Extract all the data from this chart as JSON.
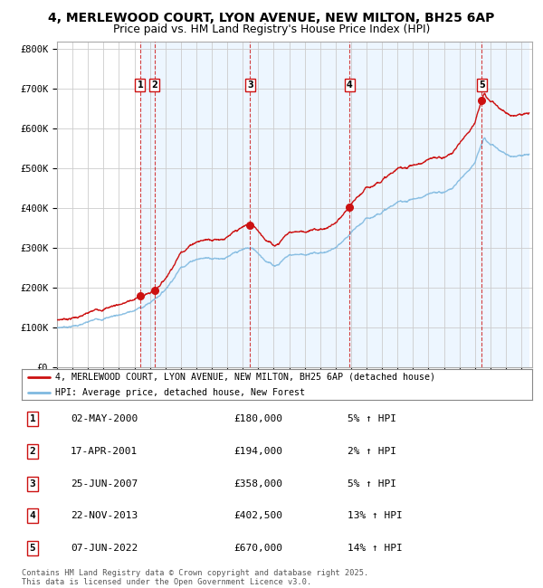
{
  "title_line1": "4, MERLEWOOD COURT, LYON AVENUE, NEW MILTON, BH25 6AP",
  "title_line2": "Price paid vs. HM Land Registry's House Price Index (HPI)",
  "y_ticks": [
    0,
    100000,
    200000,
    300000,
    400000,
    500000,
    600000,
    700000,
    800000
  ],
  "y_tick_labels": [
    "£0",
    "£100K",
    "£200K",
    "£300K",
    "£400K",
    "£500K",
    "£600K",
    "£700K",
    "£800K"
  ],
  "ylim": [
    0,
    820000
  ],
  "hpi_color": "#7fb9e0",
  "price_color": "#cc1111",
  "sale_dot_color": "#cc1111",
  "vline_color": "#cc1111",
  "shade_color": "#ddeeff",
  "grid_color": "#cccccc",
  "bg_color": "#ffffff",
  "sales": [
    {
      "num": 1,
      "date_str": "02-MAY-2000",
      "date_dec": 2000.37,
      "price": 180000,
      "pct": "5%",
      "dir": "↑"
    },
    {
      "num": 2,
      "date_str": "17-APR-2001",
      "date_dec": 2001.29,
      "price": 194000,
      "pct": "2%",
      "dir": "↑"
    },
    {
      "num": 3,
      "date_str": "25-JUN-2007",
      "date_dec": 2007.48,
      "price": 358000,
      "pct": "5%",
      "dir": "↑"
    },
    {
      "num": 4,
      "date_str": "22-NOV-2013",
      "date_dec": 2013.89,
      "price": 402500,
      "pct": "13%",
      "dir": "↑"
    },
    {
      "num": 5,
      "date_str": "07-JUN-2022",
      "date_dec": 2022.44,
      "price": 670000,
      "pct": "14%",
      "dir": "↑"
    }
  ],
  "legend_line1": "4, MERLEWOOD COURT, LYON AVENUE, NEW MILTON, BH25 6AP (detached house)",
  "legend_line2": "HPI: Average price, detached house, New Forest",
  "footer_line1": "Contains HM Land Registry data © Crown copyright and database right 2025.",
  "footer_line2": "This data is licensed under the Open Government Licence v3.0.",
  "hpi_anchors_t": [
    1995.0,
    1996.0,
    1997.0,
    1997.5,
    1998.0,
    1998.5,
    1999.0,
    1999.5,
    2000.0,
    2000.5,
    2001.0,
    2001.5,
    2002.0,
    2002.5,
    2003.0,
    2003.5,
    2004.0,
    2004.5,
    2005.0,
    2005.5,
    2006.0,
    2006.5,
    2007.0,
    2007.3,
    2007.6,
    2008.0,
    2008.5,
    2009.0,
    2009.3,
    2009.6,
    2010.0,
    2010.5,
    2011.0,
    2011.5,
    2012.0,
    2012.5,
    2013.0,
    2013.5,
    2014.0,
    2014.5,
    2015.0,
    2015.5,
    2016.0,
    2016.5,
    2017.0,
    2017.5,
    2018.0,
    2018.5,
    2019.0,
    2019.5,
    2020.0,
    2020.5,
    2021.0,
    2021.5,
    2022.0,
    2022.3,
    2022.6,
    2023.0,
    2023.5,
    2024.0,
    2024.5,
    2025.0
  ],
  "hpi_anchors_v": [
    100000,
    107000,
    115000,
    120000,
    126000,
    132000,
    138000,
    143000,
    148000,
    157000,
    168000,
    185000,
    205000,
    235000,
    265000,
    280000,
    292000,
    295000,
    298000,
    300000,
    304000,
    310000,
    316000,
    320000,
    318000,
    308000,
    292000,
    280000,
    285000,
    298000,
    310000,
    313000,
    315000,
    316000,
    318000,
    322000,
    330000,
    342000,
    358000,
    375000,
    390000,
    400000,
    415000,
    425000,
    435000,
    440000,
    447000,
    450000,
    455000,
    458000,
    460000,
    470000,
    490000,
    515000,
    542000,
    572000,
    598000,
    582000,
    565000,
    553000,
    552000,
    558000
  ]
}
